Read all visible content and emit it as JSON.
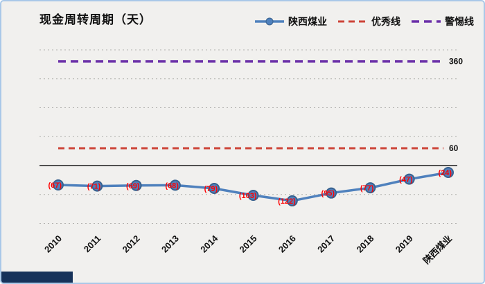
{
  "chart_data": {
    "type": "line",
    "title": "现金周转周期（天）",
    "categories": [
      "2010",
      "2011",
      "2012",
      "2013",
      "2014",
      "2015",
      "2016",
      "2017",
      "2018",
      "2019",
      "陕西煤业"
    ],
    "series": [
      {
        "name": "陕西煤业",
        "kind": "line",
        "color": "#4f81bd",
        "marker": "circle",
        "marker_edge_color": "#38618e",
        "line_width": 3.5,
        "values": [
          -67,
          -71,
          -69,
          -68,
          -79,
          -103,
          -122,
          -95,
          -77,
          -47,
          -24
        ],
        "data_labels": [
          "(67)",
          "(71)",
          "(69)",
          "(68)",
          "(79)",
          "(103)",
          "(122)",
          "(95)",
          "(77)",
          "(47)",
          "(24)"
        ],
        "data_label_color": "#fe0000"
      },
      {
        "name": "优秀线",
        "kind": "reference-line",
        "color": "#cd4438",
        "value": 60,
        "label": "60",
        "dash": "9 6",
        "line_width": 3
      },
      {
        "name": "警惕线",
        "kind": "reference-line",
        "color": "#6a2fa8",
        "value": 360,
        "label": "360",
        "dash": "11 7",
        "line_width": 3.5
      }
    ],
    "ylim": [
      -200,
      400
    ],
    "grid": true,
    "grid_step": 100,
    "gridline_color": "#b0afac",
    "zero_line_color": "#1a1a1a",
    "axis_label_color": "#111111",
    "legend_position": "top-right",
    "x_label_rotation": -45
  },
  "legend": {
    "items": [
      {
        "label": "陕西煤业"
      },
      {
        "label": "优秀线"
      },
      {
        "label": "警惕线"
      }
    ]
  }
}
